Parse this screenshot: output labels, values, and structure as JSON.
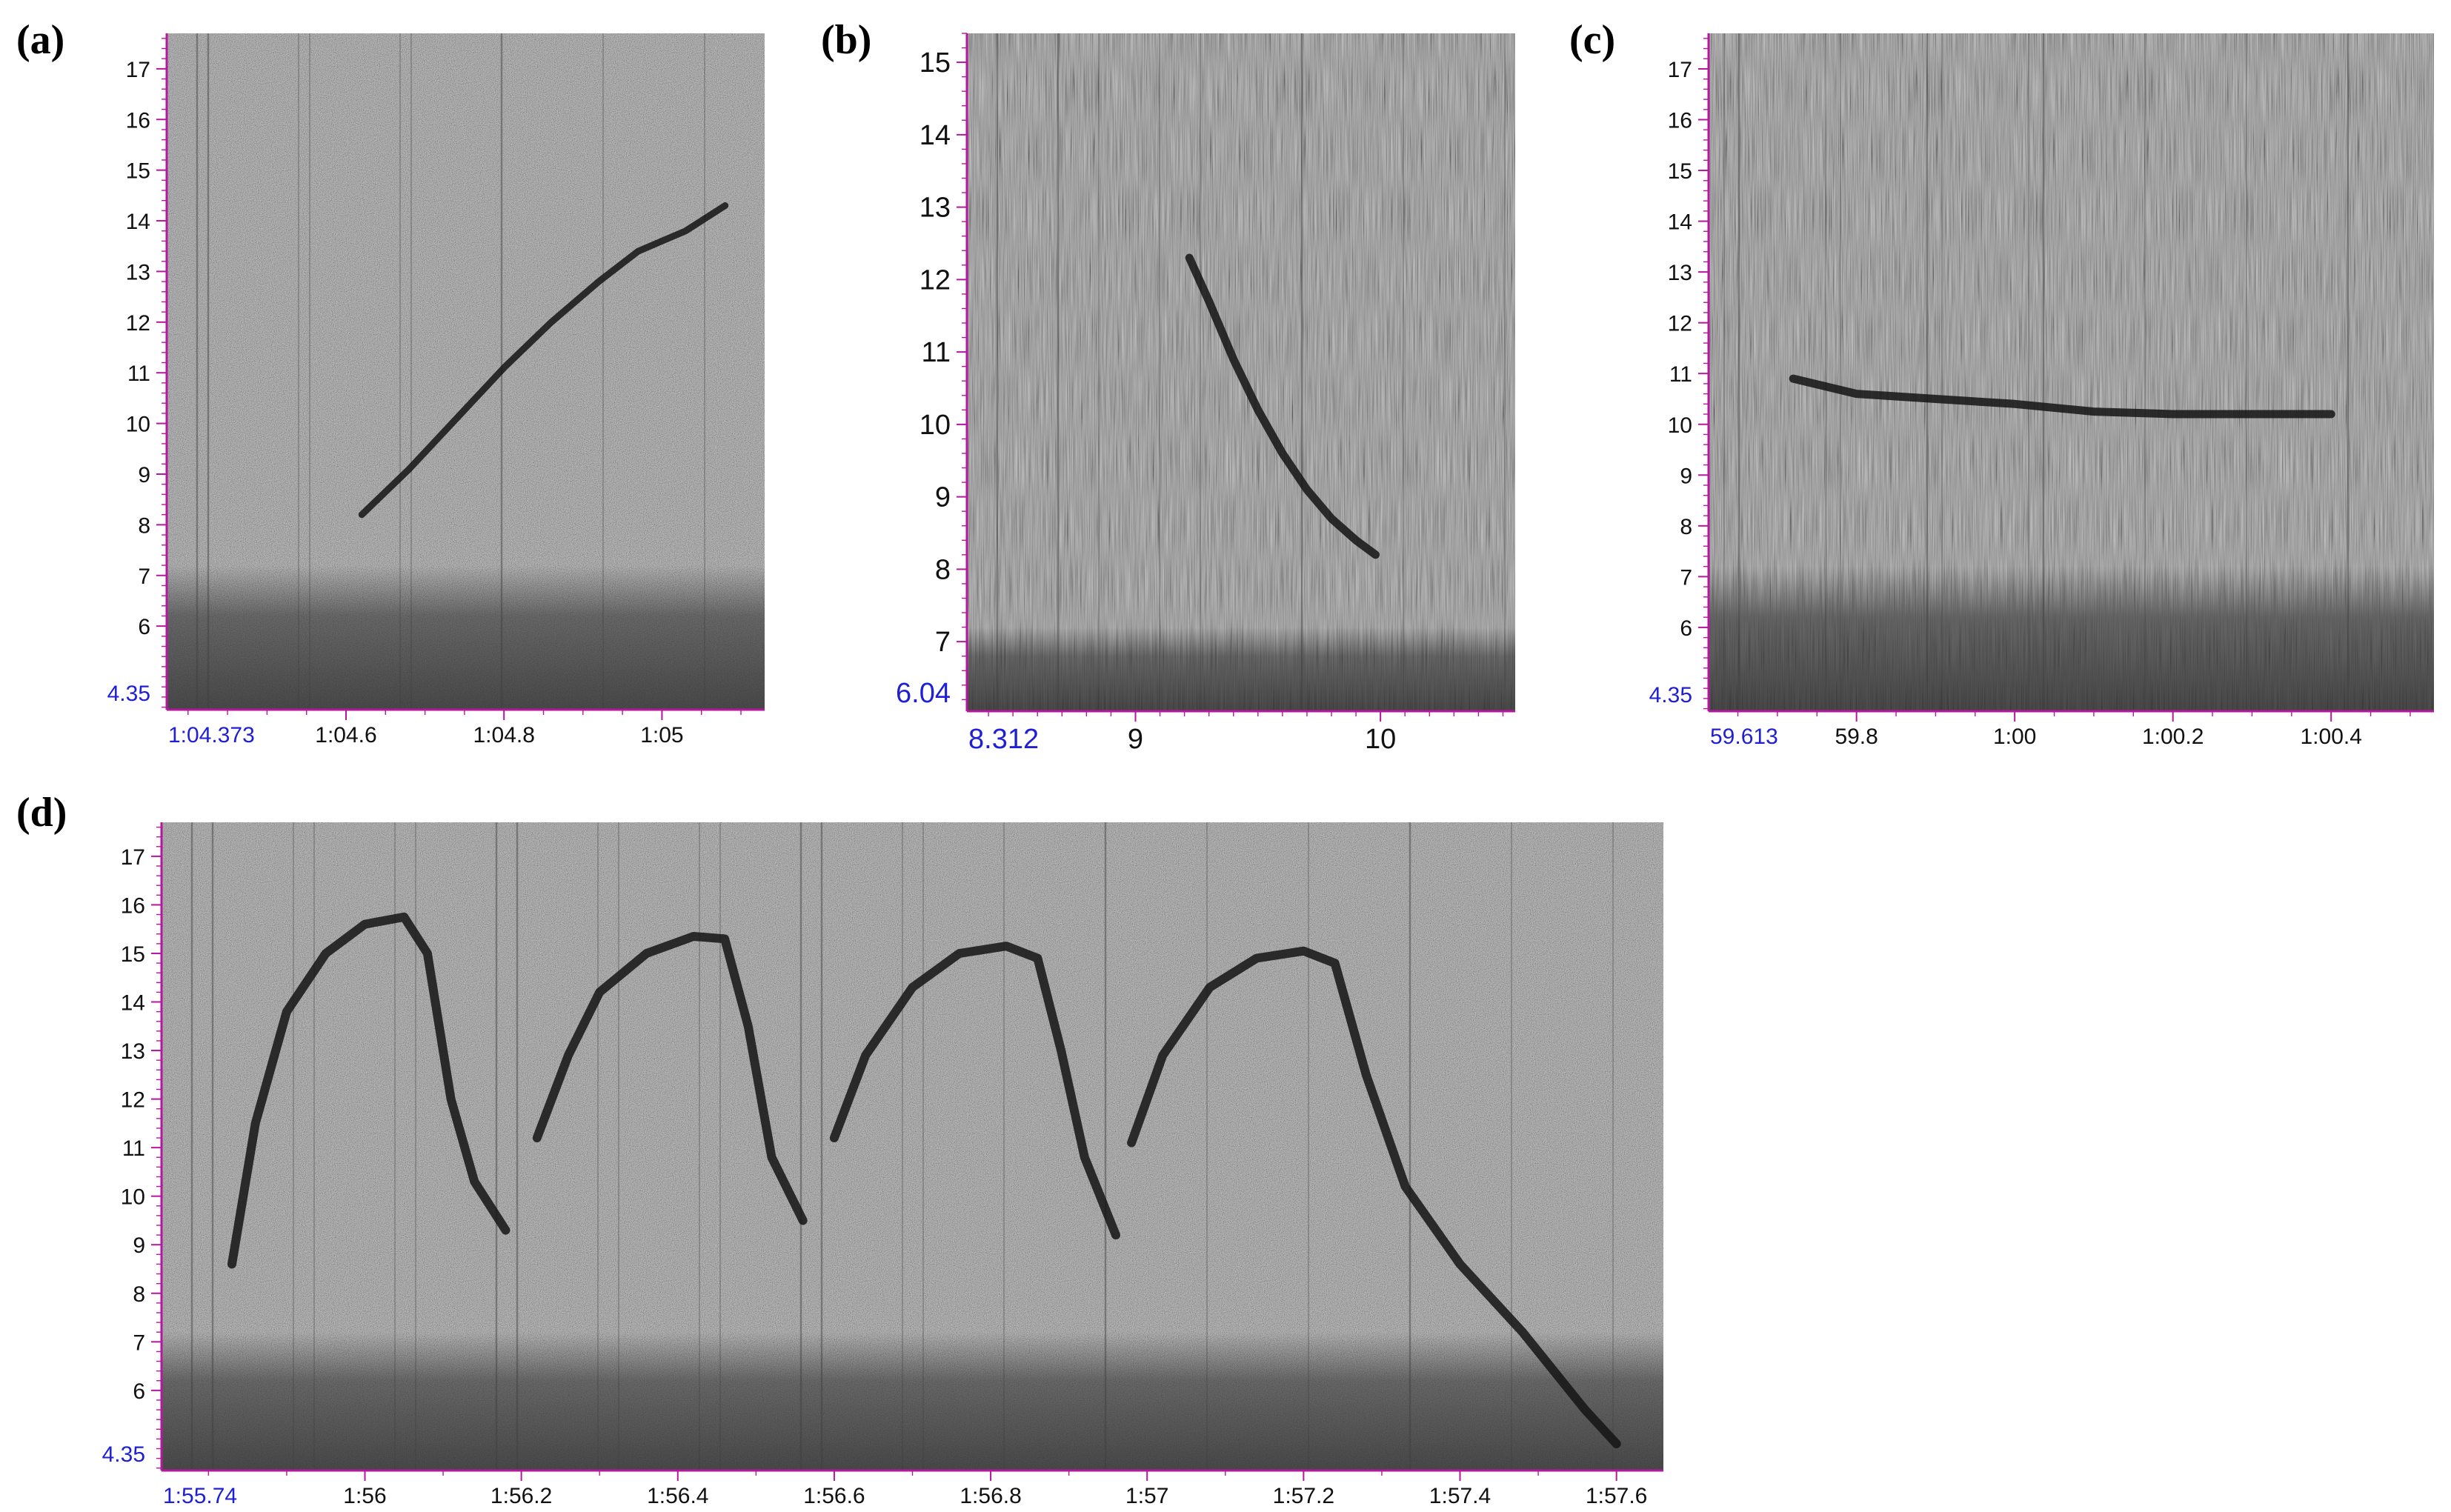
{
  "colors": {
    "axis": "#b5179e",
    "edge_label": "#1f1fd6",
    "background_noise": "#8c8c8c",
    "low_band": "#3a3a3a",
    "contour": "#141414"
  },
  "chart_data": [
    {
      "panel": "(a)",
      "type": "line",
      "subtype": "spectrogram",
      "title": "",
      "xlabel": "",
      "ylabel": "",
      "grid": false,
      "legend": "none",
      "xlim": [
        64.373,
        65.13
      ],
      "ylim": [
        4.35,
        17.7
      ],
      "x_ticks": [
        {
          "v": 64.6,
          "label": "1:04.6"
        },
        {
          "v": 64.8,
          "label": "1:04.8"
        },
        {
          "v": 65.0,
          "label": "1:05"
        }
      ],
      "x_edge_label": "1:04.373",
      "y_ticks": [
        6,
        7,
        8,
        9,
        10,
        11,
        12,
        13,
        14,
        15,
        16,
        17
      ],
      "y_edge_label": "4.35",
      "series": [
        {
          "x": [
            64.62,
            64.68,
            64.74,
            64.8,
            64.86,
            64.92,
            64.97,
            65.03,
            65.08
          ],
          "y": [
            8.2,
            9.1,
            10.1,
            11.1,
            12.0,
            12.8,
            13.4,
            13.8,
            14.3
          ]
        }
      ]
    },
    {
      "panel": "(b)",
      "type": "line",
      "subtype": "spectrogram",
      "title": "",
      "xlabel": "",
      "ylabel": "",
      "grid": false,
      "legend": "none",
      "xlim": [
        8.312,
        10.55
      ],
      "ylim": [
        6.04,
        15.4
      ],
      "x_ticks": [
        {
          "v": 9,
          "label": "9"
        },
        {
          "v": 10,
          "label": "10"
        }
      ],
      "x_edge_label": "8.312",
      "y_ticks": [
        7,
        8,
        9,
        10,
        11,
        12,
        13,
        14,
        15
      ],
      "y_edge_label": "6.04",
      "series": [
        {
          "x": [
            9.22,
            9.3,
            9.4,
            9.5,
            9.6,
            9.7,
            9.8,
            9.9,
            9.98
          ],
          "y": [
            12.3,
            11.7,
            10.9,
            10.2,
            9.6,
            9.1,
            8.7,
            8.4,
            8.2
          ]
        }
      ]
    },
    {
      "panel": "(c)",
      "type": "line",
      "subtype": "spectrogram",
      "title": "",
      "xlabel": "",
      "ylabel": "",
      "grid": false,
      "legend": "none",
      "xlim": [
        59.613,
        60.53
      ],
      "ylim": [
        4.35,
        17.7
      ],
      "x_ticks": [
        {
          "v": 59.8,
          "label": "59.8"
        },
        {
          "v": 60.0,
          "label": "1:00"
        },
        {
          "v": 60.2,
          "label": "1:00.2"
        },
        {
          "v": 60.4,
          "label": "1:00.4"
        }
      ],
      "x_edge_label": "59.613",
      "y_ticks": [
        6,
        7,
        8,
        9,
        10,
        11,
        12,
        13,
        14,
        15,
        16,
        17
      ],
      "y_edge_label": "4.35",
      "series": [
        {
          "x": [
            59.72,
            59.8,
            59.9,
            60.0,
            60.1,
            60.2,
            60.3,
            60.4
          ],
          "y": [
            10.9,
            10.6,
            10.5,
            10.4,
            10.25,
            10.2,
            10.2,
            10.2
          ]
        }
      ]
    },
    {
      "panel": "(d)",
      "type": "line",
      "subtype": "spectrogram",
      "title": "",
      "xlabel": "",
      "ylabel": "",
      "grid": false,
      "legend": "none",
      "xlim": [
        115.74,
        117.66
      ],
      "ylim": [
        4.35,
        17.7
      ],
      "x_ticks": [
        {
          "v": 116.0,
          "label": "1:56"
        },
        {
          "v": 116.2,
          "label": "1:56.2"
        },
        {
          "v": 116.4,
          "label": "1:56.4"
        },
        {
          "v": 116.6,
          "label": "1:56.6"
        },
        {
          "v": 116.8,
          "label": "1:56.8"
        },
        {
          "v": 117.0,
          "label": "1:57"
        },
        {
          "v": 117.2,
          "label": "1:57.2"
        },
        {
          "v": 117.4,
          "label": "1:57.4"
        },
        {
          "v": 117.6,
          "label": "1:57.6"
        }
      ],
      "x_edge_label": "1:55.74",
      "y_ticks": [
        6,
        7,
        8,
        9,
        10,
        11,
        12,
        13,
        14,
        15,
        16,
        17
      ],
      "y_edge_label": "4.35",
      "series": [
        {
          "x": [
            115.83,
            115.86,
            115.9,
            115.95,
            116.0,
            116.05,
            116.08,
            116.11,
            116.14,
            116.18
          ],
          "y": [
            8.6,
            11.5,
            13.8,
            15.0,
            15.6,
            15.75,
            15.0,
            12.0,
            10.3,
            9.3
          ]
        },
        {
          "x": [
            116.22,
            116.26,
            116.3,
            116.36,
            116.42,
            116.46,
            116.49,
            116.52,
            116.56
          ],
          "y": [
            11.2,
            12.9,
            14.2,
            15.0,
            15.35,
            15.3,
            13.5,
            10.8,
            9.5
          ]
        },
        {
          "x": [
            116.6,
            116.64,
            116.7,
            116.76,
            116.82,
            116.86,
            116.89,
            116.92,
            116.96
          ],
          "y": [
            11.2,
            12.9,
            14.3,
            15.0,
            15.15,
            14.9,
            13.0,
            10.8,
            9.2
          ]
        },
        {
          "x": [
            116.98,
            117.02,
            117.08,
            117.14,
            117.2,
            117.24,
            117.28,
            117.33,
            117.4,
            117.48,
            117.56,
            117.6
          ],
          "y": [
            11.1,
            12.9,
            14.3,
            14.9,
            15.05,
            14.8,
            12.5,
            10.2,
            8.6,
            7.2,
            5.6,
            4.9
          ]
        }
      ]
    }
  ]
}
